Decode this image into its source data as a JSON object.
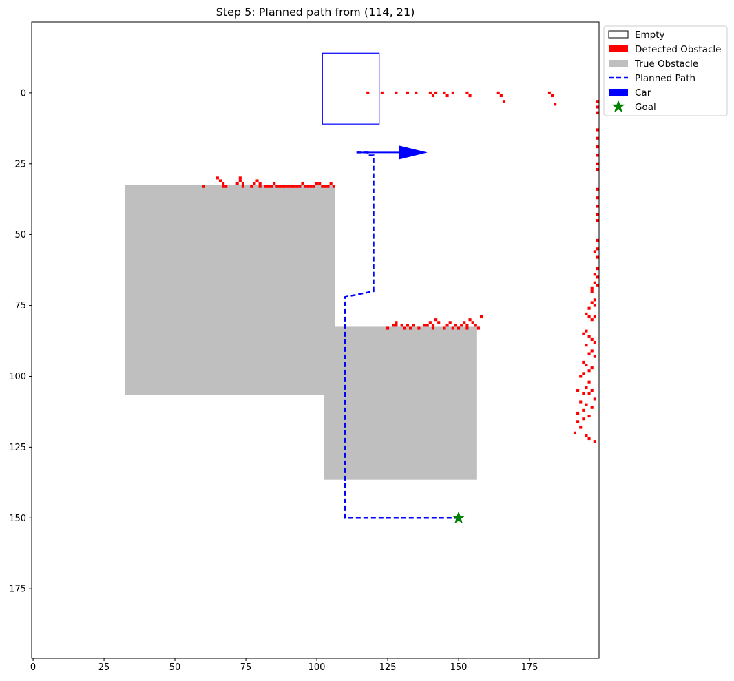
{
  "chart_data": {
    "type": "scatter",
    "title": "Step 5: Planned path from (114, 21)",
    "xlabel": "",
    "ylabel": "",
    "xlim": [
      -0.5,
      199.5
    ],
    "ylim": [
      199.5,
      -25
    ],
    "y_inverted": true,
    "grid": false,
    "legend_placement": "outside-top-right",
    "x_ticks": [
      0,
      25,
      50,
      75,
      100,
      125,
      150,
      175
    ],
    "y_ticks": [
      0,
      25,
      50,
      75,
      100,
      125,
      150,
      175
    ],
    "legend": [
      {
        "label": "Empty",
        "kind": "empty-patch",
        "color": "#ffffff",
        "edge": "#000000"
      },
      {
        "label": "Detected Obstacle",
        "kind": "patch",
        "color": "#ff0000"
      },
      {
        "label": "True Obstacle",
        "kind": "patch",
        "color": "#bfbfbf"
      },
      {
        "label": "Planned Path",
        "kind": "dashed-line",
        "color": "#0000ff"
      },
      {
        "label": "Car",
        "kind": "patch",
        "color": "#0000ff"
      },
      {
        "label": "Goal",
        "kind": "star",
        "color": "#008000"
      }
    ],
    "true_obstacles": [
      {
        "x0": 32.5,
        "x1": 106.5,
        "y0": 32.5,
        "y1": 106.5
      },
      {
        "x0": 102.5,
        "x1": 156.5,
        "y0": 82.5,
        "y1": 136.5
      }
    ],
    "car": {
      "x0": 102,
      "x1": 122,
      "y0": -14,
      "y1": 11
    },
    "heading_arrow": {
      "from": [
        114,
        21
      ],
      "to": [
        139,
        21
      ]
    },
    "planned_path": {
      "x": [
        114,
        118,
        118,
        120,
        120,
        110,
        110,
        150
      ],
      "y": [
        21,
        21,
        22,
        22,
        70,
        72,
        150,
        150
      ]
    },
    "goal": {
      "x": 150,
      "y": 150
    },
    "detected_obstacles": {
      "x": [
        118,
        123,
        128,
        132,
        135,
        140,
        141,
        142,
        145,
        146,
        148,
        153,
        154,
        164,
        165,
        166,
        182,
        183,
        184,
        60,
        65,
        66,
        67,
        67,
        68,
        72,
        73,
        73,
        74,
        74,
        77,
        78,
        79,
        80,
        80,
        82,
        83,
        84,
        85,
        86,
        87,
        88,
        89,
        90,
        91,
        92,
        93,
        94,
        95,
        96,
        97,
        98,
        99,
        100,
        101,
        102,
        103,
        104,
        105,
        106,
        125,
        127,
        128,
        128,
        130,
        131,
        132,
        133,
        134,
        136,
        138,
        139,
        140,
        141,
        141,
        142,
        143,
        145,
        146,
        147,
        148,
        149,
        150,
        151,
        152,
        153,
        153,
        154,
        155,
        156,
        157,
        158,
        199,
        199,
        199,
        199,
        199,
        199,
        199,
        199,
        199,
        199,
        199,
        199,
        199,
        199,
        199,
        199,
        199,
        199,
        199,
        199,
        198,
        198,
        198,
        197,
        197,
        198,
        196,
        197,
        198,
        195,
        196,
        197,
        198,
        194,
        195,
        196,
        197,
        198,
        195,
        197,
        196,
        198,
        194,
        195,
        197,
        196,
        194,
        193,
        196,
        195,
        197,
        194,
        192,
        196,
        198,
        193,
        195,
        197,
        194,
        192,
        196,
        194,
        192,
        193,
        191,
        195,
        196,
        198
      ],
      "y": [
        0,
        0,
        0,
        0,
        0,
        0,
        1,
        0,
        0,
        1,
        0,
        0,
        1,
        0,
        1,
        3,
        0,
        1,
        4,
        33,
        30,
        31,
        32,
        33,
        33,
        32,
        30,
        31,
        32,
        33,
        33,
        32,
        31,
        32,
        33,
        33,
        33,
        33,
        32,
        33,
        33,
        33,
        33,
        33,
        33,
        33,
        33,
        33,
        32,
        33,
        33,
        33,
        33,
        32,
        32,
        33,
        33,
        33,
        32,
        33,
        83,
        82,
        82,
        81,
        82,
        83,
        82,
        83,
        82,
        83,
        82,
        82,
        81,
        82,
        83,
        80,
        81,
        83,
        82,
        81,
        83,
        82,
        83,
        82,
        81,
        82,
        83,
        80,
        81,
        82,
        83,
        79,
        3,
        5,
        7,
        13,
        16,
        19,
        22,
        25,
        27,
        34,
        37,
        40,
        43,
        45,
        52,
        55,
        58,
        62,
        65,
        68,
        56,
        64,
        67,
        70,
        69,
        73,
        76,
        74,
        75,
        78,
        79,
        80,
        79,
        85,
        84,
        86,
        87,
        88,
        89,
        91,
        92,
        93,
        95,
        96,
        97,
        98,
        99,
        100,
        102,
        104,
        105,
        106,
        105,
        106,
        108,
        109,
        110,
        111,
        112,
        113,
        114,
        115,
        116,
        118,
        120,
        121,
        122,
        123
      ]
    }
  }
}
